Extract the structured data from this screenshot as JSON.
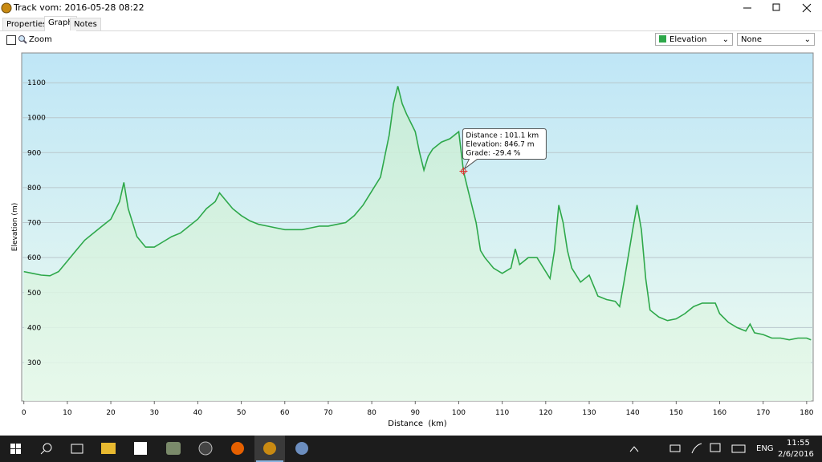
{
  "window": {
    "title": "Track vom: 2016-05-28 08:22"
  },
  "tabs": [
    "Properties",
    "Graph",
    "Notes"
  ],
  "selected_tab": "Graph",
  "toolbar": {
    "zoom_label": "Zoom",
    "second_dropdown": "None"
  },
  "chart_data": {
    "type": "line",
    "x_label": "Distance  (km)",
    "y_label": "Elevation (m)",
    "x": [
      0,
      2,
      4,
      6,
      8,
      10,
      12,
      14,
      16,
      18,
      20,
      22,
      23,
      24,
      26,
      28,
      30,
      32,
      34,
      36,
      38,
      40,
      42,
      44,
      45,
      46,
      48,
      50,
      52,
      54,
      56,
      58,
      60,
      62,
      64,
      66,
      68,
      70,
      72,
      74,
      76,
      78,
      80,
      82,
      84,
      85,
      86,
      87,
      88,
      90,
      91,
      92,
      93,
      94,
      96,
      98,
      100,
      101.1,
      102,
      104,
      105,
      106,
      108,
      110,
      112,
      113,
      114,
      116,
      118,
      120,
      121,
      122,
      123,
      124,
      125,
      126,
      128,
      130,
      131,
      132,
      134,
      136,
      137,
      138,
      140,
      141,
      142,
      143,
      144,
      146,
      148,
      150,
      152,
      154,
      156,
      158,
      159,
      160,
      162,
      164,
      166,
      167,
      168,
      170,
      172,
      174,
      176,
      178,
      180,
      181
    ],
    "series": [
      {
        "name": "Elevation",
        "color": "#2ea84a",
        "values": [
          560,
          555,
          550,
          548,
          560,
          590,
          620,
          650,
          670,
          690,
          710,
          760,
          815,
          740,
          660,
          630,
          630,
          645,
          660,
          670,
          690,
          710,
          740,
          760,
          785,
          770,
          740,
          720,
          705,
          695,
          690,
          685,
          680,
          680,
          680,
          685,
          690,
          690,
          695,
          700,
          720,
          750,
          790,
          830,
          950,
          1040,
          1090,
          1040,
          1010,
          960,
          900,
          850,
          890,
          910,
          930,
          940,
          960,
          846.7,
          800,
          700,
          620,
          600,
          570,
          555,
          570,
          625,
          580,
          600,
          600,
          560,
          540,
          620,
          750,
          700,
          620,
          570,
          530,
          550,
          520,
          490,
          480,
          475,
          460,
          530,
          680,
          750,
          680,
          540,
          450,
          430,
          420,
          425,
          440,
          460,
          470,
          470,
          470,
          440,
          415,
          400,
          390,
          410,
          385,
          380,
          370,
          370,
          365,
          370,
          370,
          365
        ]
      }
    ],
    "xlim": [
      -0.5,
      181.5
    ],
    "ylim": [
      190,
      1185
    ],
    "xticks": [
      0,
      10,
      20,
      30,
      40,
      50,
      60,
      70,
      80,
      90,
      100,
      110,
      120,
      130,
      140,
      150,
      160,
      170,
      180
    ],
    "yticks": [
      300,
      400,
      500,
      600,
      700,
      800,
      900,
      1000,
      1100
    ],
    "grid": true,
    "tooltip": {
      "x": 101.1,
      "y": 846.7,
      "lines": [
        "Distance : 101.1 km",
        "Elevation: 846.7 m",
        "Grade: -29.4 %"
      ]
    }
  },
  "taskbar": {
    "language": "ENG",
    "time": "11:55",
    "date": "2/6/2016"
  }
}
